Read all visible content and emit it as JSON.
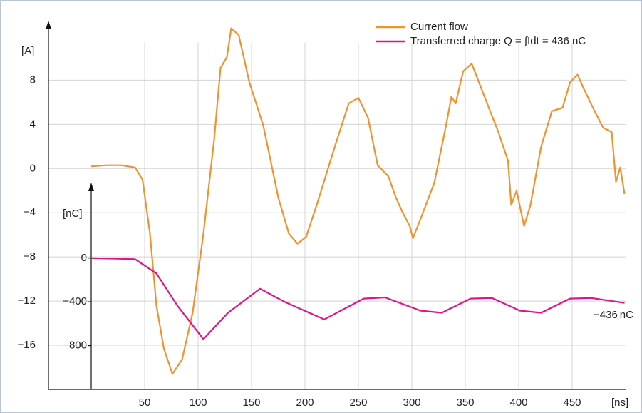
{
  "chart_data": {
    "type": "line",
    "xlabel": "[ns]",
    "ylabel": "[A]",
    "y2label": "[nC]",
    "xlim": [
      -40,
      500
    ],
    "xticks": [
      50,
      100,
      150,
      200,
      250,
      300,
      350,
      400,
      450
    ],
    "ylim": [
      -20,
      13
    ],
    "yticks": [
      {
        "value": -16,
        "label": "−16"
      },
      {
        "value": -12,
        "label": "−12"
      },
      {
        "value": -8,
        "label": "−8"
      },
      {
        "value": -4,
        "label": "−4"
      },
      0,
      4,
      8
    ],
    "y2lim": [
      -1200,
      650
    ],
    "y2ticks": [
      {
        "value": -800,
        "label": "−800"
      },
      {
        "value": -400,
        "label": "−400"
      },
      0
    ],
    "grid": true,
    "legend": "top-right",
    "series": [
      {
        "name": "Current flow",
        "color": "#f0922e",
        "x": [
          0,
          15,
          28,
          41,
          48,
          55,
          61,
          68,
          76,
          85,
          95,
          105,
          115,
          121,
          127,
          131,
          138,
          148,
          161,
          175,
          185,
          193,
          201,
          211,
          228,
          241,
          250,
          259,
          268,
          278,
          285,
          291,
          298,
          301,
          308,
          321,
          332,
          337,
          341,
          348,
          356,
          368,
          381,
          390,
          393,
          398,
          405,
          411,
          421,
          431,
          441,
          448,
          455,
          461,
          471,
          479,
          487,
          491,
          495,
          499
        ],
        "values": [
          0.2,
          0.3,
          0.3,
          0.1,
          -1,
          -5.9,
          -12.4,
          -16.3,
          -18.6,
          -17.3,
          -13,
          -5.9,
          2.6,
          9.1,
          10.1,
          12.7,
          12.1,
          7.8,
          3.9,
          -2.6,
          -5.9,
          -6.8,
          -6.2,
          -3.3,
          2,
          5.9,
          6.4,
          4.6,
          0.3,
          -0.7,
          -2.6,
          -3.9,
          -5.2,
          -6.3,
          -4.6,
          -1.3,
          3.9,
          6.5,
          5.9,
          8.8,
          9.5,
          6.5,
          3.3,
          0.7,
          -3.3,
          -2,
          -5.2,
          -3.3,
          2,
          5.2,
          5.5,
          7.8,
          8.5,
          7.2,
          5.2,
          3.7,
          3.3,
          -1.2,
          0.1,
          -2.3
        ]
      },
      {
        "name": "Transferred charge Q = ∫Idt = 436 nC",
        "color": "#e0138c",
        "axis": "y2",
        "x": [
          0,
          41,
          61,
          81,
          105,
          128,
          158,
          181,
          218,
          255,
          275,
          308,
          328,
          355,
          375,
          401,
          421,
          448,
          468,
          499
        ],
        "values": [
          0,
          -10,
          -140,
          -440,
          -740,
          -500,
          -280,
          -400,
          -560,
          -370,
          -360,
          -480,
          -500,
          -370,
          -365,
          -480,
          -500,
          -370,
          -365,
          -410
        ]
      }
    ],
    "annotation": "−436 nC"
  }
}
